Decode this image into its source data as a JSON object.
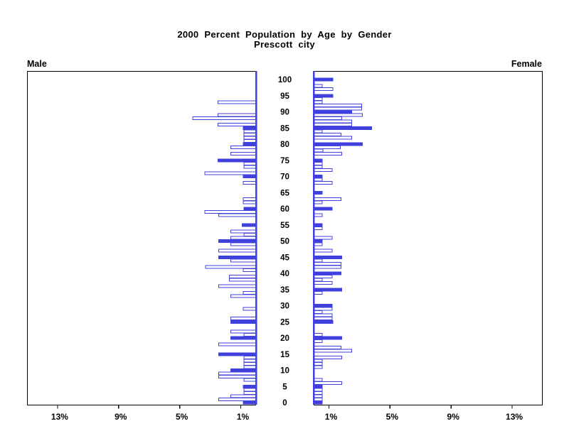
{
  "chart_data": {
    "type": "bar",
    "variant": "population-pyramid",
    "title": "2000 Percent Population by Age by Gender",
    "subtitle": "Prescott city",
    "unit": "percent of gender population, single year of age",
    "x_axis": {
      "max": 15,
      "ticks": [
        1,
        5,
        9,
        13
      ],
      "left_tick_labels": [
        "13%",
        "9%",
        "5%",
        "1%"
      ],
      "right_tick_labels": [
        "1%",
        "5%",
        "9%",
        "13%"
      ]
    },
    "age_axis": {
      "min": 0,
      "max": 100,
      "label_step": 5,
      "labels": [
        "0",
        "5",
        "10",
        "15",
        "20",
        "25",
        "30",
        "35",
        "40",
        "45",
        "50",
        "55",
        "60",
        "65",
        "70",
        "75",
        "80",
        "85",
        "90",
        "95",
        "100"
      ]
    },
    "highlight_rule": "bars for ages divisible by 5 are solid filled; other ages are hollow outlined",
    "colors": {
      "bar_outline": "#4040dd",
      "bar_fill_highlight": "#4040dd",
      "bar_fill_regular": "#ffffff",
      "frame": "#000000",
      "text": "#000000",
      "background": "#ffffff"
    },
    "legend_position": "none",
    "grid": false,
    "series": [
      {
        "name": "Male",
        "side": "left",
        "values_by_age": [
          0.85,
          2.45,
          1.65,
          0.8,
          0.8,
          0.85,
          0,
          0.8,
          2.45,
          2.45,
          1.65,
          0.8,
          0.8,
          0.8,
          0.8,
          2.45,
          0,
          0,
          2.45,
          0,
          1.65,
          0.8,
          1.65,
          0,
          0,
          1.65,
          1.65,
          0,
          0,
          0.85,
          0,
          0,
          0,
          1.65,
          0.85,
          0,
          2.45,
          0,
          1.75,
          1.75,
          0,
          0.85,
          3.3,
          0,
          1.65,
          2.45,
          0,
          2.45,
          0,
          1.65,
          2.45,
          1.65,
          0.8,
          1.65,
          0,
          0.9,
          0,
          0,
          2.45,
          3.35,
          0.8,
          0,
          0.85,
          0.85,
          0,
          0,
          0,
          0,
          0.85,
          0,
          0.85,
          3.35,
          0,
          0.8,
          0.8,
          2.5,
          0,
          1.65,
          0,
          1.65,
          0.85,
          0.8,
          0.8,
          0.8,
          0.8,
          0.85,
          2.5,
          0,
          4.15,
          2.5,
          0,
          0,
          0,
          2.5,
          0,
          0,
          0,
          0,
          0,
          0,
          0
        ]
      },
      {
        "name": "Female",
        "side": "right",
        "values_by_age": [
          0.55,
          0.55,
          0.55,
          0.55,
          0.55,
          0.55,
          1.85,
          0.55,
          0,
          0,
          0,
          0.55,
          0.55,
          0.55,
          1.85,
          0,
          2.5,
          1.8,
          0,
          0.55,
          1.85,
          0.55,
          0,
          0,
          0,
          1.25,
          1.2,
          1.2,
          0.55,
          1.2,
          1.2,
          0,
          0,
          0,
          0.55,
          1.85,
          0,
          1.2,
          0.55,
          1.2,
          1.8,
          0,
          1.8,
          1.8,
          0.55,
          1.85,
          0,
          1.2,
          0,
          0.55,
          0.55,
          1.2,
          0,
          0,
          0.55,
          0.55,
          0,
          0,
          0.55,
          0,
          1.2,
          0,
          0.55,
          1.8,
          0,
          0.55,
          0,
          0,
          1.2,
          0.55,
          0.55,
          0,
          1.2,
          0.55,
          0.55,
          0.55,
          0,
          1.85,
          0.6,
          1.75,
          3.2,
          0,
          2.5,
          1.8,
          0.55,
          3.8,
          2.5,
          2.5,
          1.85,
          3.2,
          2.5,
          3.15,
          3.15,
          0.55,
          0.55,
          1.25,
          0,
          1.25,
          0.55,
          0,
          1.25
        ]
      }
    ]
  }
}
